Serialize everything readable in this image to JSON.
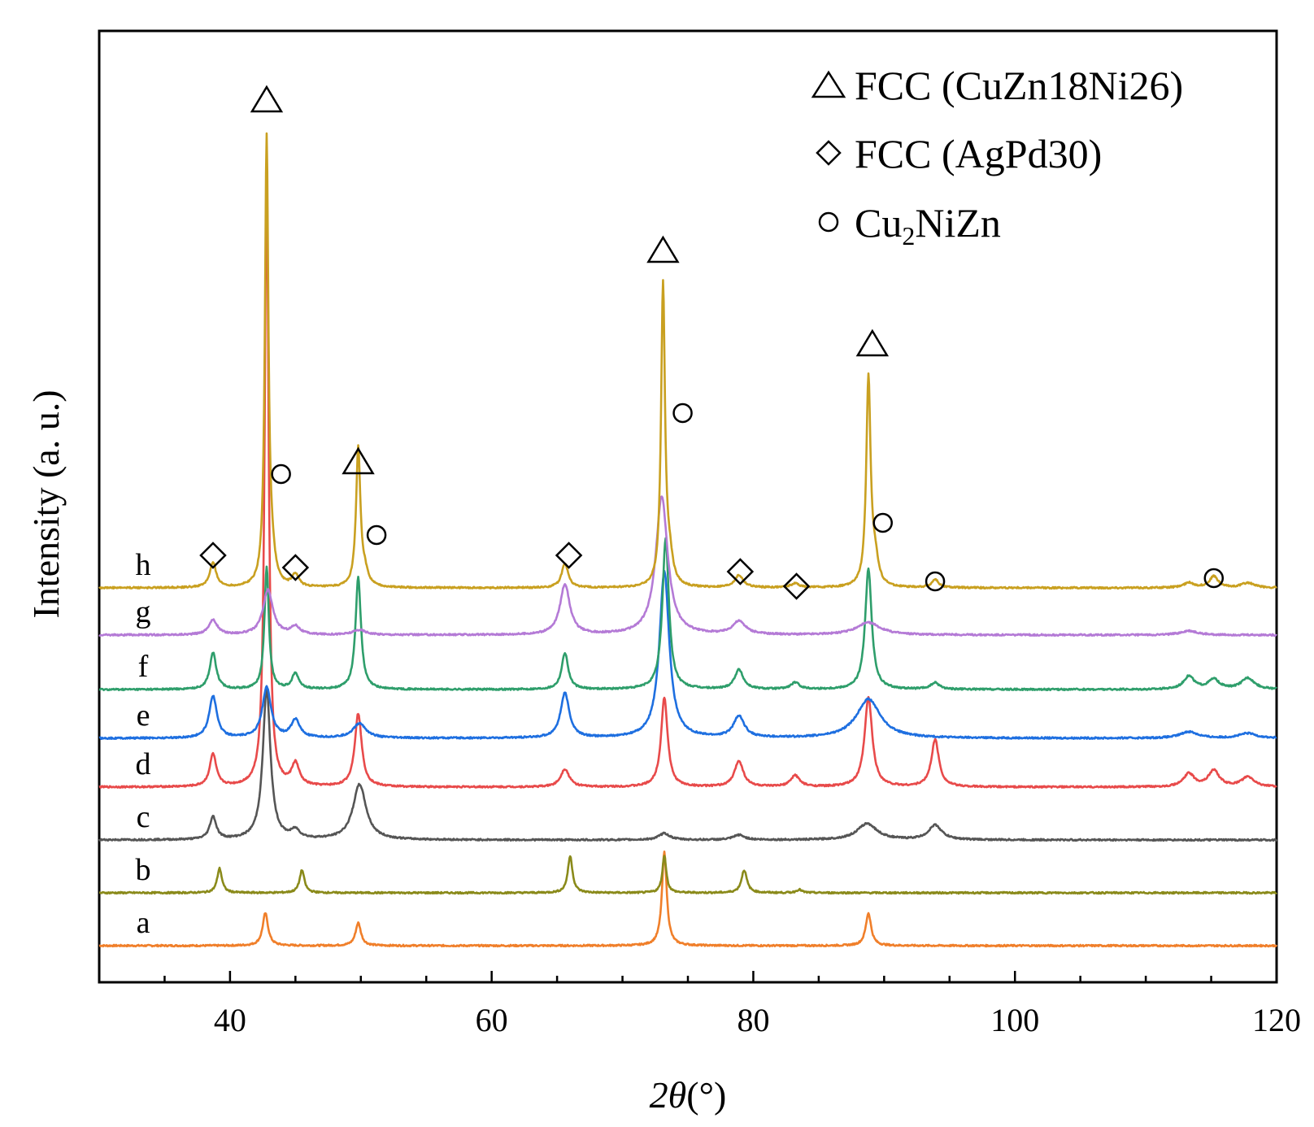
{
  "chart_data": {
    "type": "line",
    "title": "",
    "xlabel": "2θ(°)",
    "xlabel_parts": {
      "italic": "2θ",
      "unit": "(°)"
    },
    "ylabel": "Intensity (a. u.)",
    "xlim": [
      30,
      120
    ],
    "xticks": [
      40,
      60,
      80,
      100,
      120
    ],
    "xtick_labels": [
      "40",
      "60",
      "80",
      "100",
      "120"
    ],
    "grid": false,
    "legend": {
      "placement": "top-right",
      "entries": [
        {
          "marker": "triangle",
          "symbol": "△",
          "text": "FCC (CuZn18Ni26)"
        },
        {
          "marker": "diamond",
          "symbol": "◇",
          "text": "FCC (AgPd30)"
        },
        {
          "marker": "circle",
          "symbol": "○",
          "text_main": "Cu",
          "text_sub": "2",
          "text_tail": "NiZn",
          "text": "Cu2NiZn"
        }
      ]
    },
    "series": [
      {
        "name": "a",
        "color": "#f07f2a",
        "offset": 0,
        "peaks": [
          [
            42.7,
            40,
            0.25
          ],
          [
            49.8,
            28,
            0.25
          ],
          [
            73.2,
            115,
            0.22
          ],
          [
            88.8,
            40,
            0.25
          ]
        ]
      },
      {
        "name": "b",
        "color": "#8a8a1a",
        "offset": 65,
        "peaks": [
          [
            39.2,
            30,
            0.22
          ],
          [
            45.5,
            28,
            0.22
          ],
          [
            66.0,
            45,
            0.22
          ],
          [
            73.2,
            46,
            0.18
          ],
          [
            79.3,
            28,
            0.25
          ],
          [
            83.5,
            4,
            0.25
          ]
        ]
      },
      {
        "name": "c",
        "color": "#555555",
        "offset": 130,
        "peaks": [
          [
            38.7,
            28,
            0.3
          ],
          [
            42.8,
            185,
            0.35
          ],
          [
            45.0,
            10,
            0.4
          ],
          [
            49.9,
            68,
            0.6
          ],
          [
            73.2,
            8,
            0.5
          ],
          [
            78.9,
            6,
            0.5
          ],
          [
            88.7,
            20,
            0.9
          ],
          [
            93.9,
            18,
            0.6
          ]
        ]
      },
      {
        "name": "d",
        "color": "#e84a4a",
        "offset": 195,
        "peaks": [
          [
            38.7,
            40,
            0.3
          ],
          [
            42.8,
            755,
            0.18
          ],
          [
            45.0,
            27,
            0.35
          ],
          [
            49.8,
            90,
            0.32
          ],
          [
            65.6,
            22,
            0.4
          ],
          [
            73.2,
            110,
            0.3
          ],
          [
            78.9,
            32,
            0.4
          ],
          [
            83.2,
            14,
            0.4
          ],
          [
            88.8,
            110,
            0.35
          ],
          [
            93.9,
            58,
            0.35
          ],
          [
            113.3,
            16,
            0.5
          ],
          [
            115.2,
            20,
            0.5
          ],
          [
            117.8,
            12,
            0.6
          ]
        ]
      },
      {
        "name": "e",
        "color": "#1e6fe0",
        "offset": 255,
        "peaks": [
          [
            38.7,
            52,
            0.35
          ],
          [
            42.8,
            62,
            0.4
          ],
          [
            45.0,
            22,
            0.4
          ],
          [
            49.9,
            18,
            0.6
          ],
          [
            65.6,
            55,
            0.4
          ],
          [
            73.2,
            205,
            0.45
          ],
          [
            78.9,
            26,
            0.5
          ],
          [
            88.8,
            48,
            1.1
          ],
          [
            113.3,
            8,
            0.8
          ],
          [
            117.8,
            6,
            0.8
          ]
        ]
      },
      {
        "name": "f",
        "color": "#2e9e6b",
        "offset": 315,
        "peaks": [
          [
            38.7,
            45,
            0.3
          ],
          [
            42.8,
            150,
            0.2
          ],
          [
            45.0,
            20,
            0.3
          ],
          [
            49.8,
            138,
            0.25
          ],
          [
            65.6,
            45,
            0.3
          ],
          [
            73.3,
            185,
            0.3
          ],
          [
            78.9,
            24,
            0.4
          ],
          [
            83.2,
            8,
            0.4
          ],
          [
            88.8,
            148,
            0.3
          ],
          [
            93.9,
            8,
            0.4
          ],
          [
            113.3,
            16,
            0.5
          ],
          [
            115.2,
            12,
            0.5
          ],
          [
            117.8,
            14,
            0.6
          ]
        ]
      },
      {
        "name": "g",
        "color": "#b47ad6",
        "offset": 382,
        "peaks": [
          [
            38.7,
            18,
            0.4
          ],
          [
            42.9,
            55,
            0.45
          ],
          [
            45.0,
            10,
            0.4
          ],
          [
            49.9,
            6,
            0.6
          ],
          [
            65.6,
            62,
            0.45
          ],
          [
            73.0,
            170,
            0.55
          ],
          [
            78.9,
            16,
            0.6
          ],
          [
            88.8,
            15,
            1.1
          ],
          [
            113.3,
            5,
            0.8
          ]
        ]
      },
      {
        "name": "h",
        "color": "#c9a020",
        "offset": 440,
        "peaks": [
          [
            38.7,
            30,
            0.3
          ],
          [
            42.8,
            550,
            0.16
          ],
          [
            43.2,
            25,
            0.3
          ],
          [
            45.0,
            15,
            0.3
          ],
          [
            49.8,
            170,
            0.2
          ],
          [
            50.3,
            15,
            0.3
          ],
          [
            65.6,
            30,
            0.3
          ],
          [
            73.1,
            370,
            0.18
          ],
          [
            73.6,
            30,
            0.3
          ],
          [
            78.9,
            15,
            0.4
          ],
          [
            83.2,
            5,
            0.4
          ],
          [
            88.8,
            255,
            0.2
          ],
          [
            89.3,
            30,
            0.3
          ],
          [
            93.9,
            10,
            0.3
          ],
          [
            113.3,
            6,
            0.5
          ],
          [
            115.2,
            14,
            0.4
          ],
          [
            117.8,
            6,
            0.6
          ]
        ]
      }
    ],
    "annotations": [
      {
        "marker": "diamond",
        "x": 38.7,
        "level": 480
      },
      {
        "marker": "triangle",
        "x": 42.8,
        "level": 1040
      },
      {
        "marker": "circle",
        "x": 43.9,
        "level": 580
      },
      {
        "marker": "diamond",
        "x": 45.0,
        "level": 465
      },
      {
        "marker": "triangle",
        "x": 49.8,
        "level": 595
      },
      {
        "marker": "circle",
        "x": 51.2,
        "level": 505
      },
      {
        "marker": "diamond",
        "x": 65.9,
        "level": 480
      },
      {
        "marker": "triangle",
        "x": 73.1,
        "level": 855
      },
      {
        "marker": "circle",
        "x": 74.6,
        "level": 655
      },
      {
        "marker": "diamond",
        "x": 79.0,
        "level": 460
      },
      {
        "marker": "diamond",
        "x": 83.3,
        "level": 442
      },
      {
        "marker": "triangle",
        "x": 89.1,
        "level": 740
      },
      {
        "marker": "circle",
        "x": 89.9,
        "level": 520
      },
      {
        "marker": "circle",
        "x": 93.9,
        "level": 448
      },
      {
        "marker": "circle",
        "x": 115.2,
        "level": 452
      }
    ]
  }
}
